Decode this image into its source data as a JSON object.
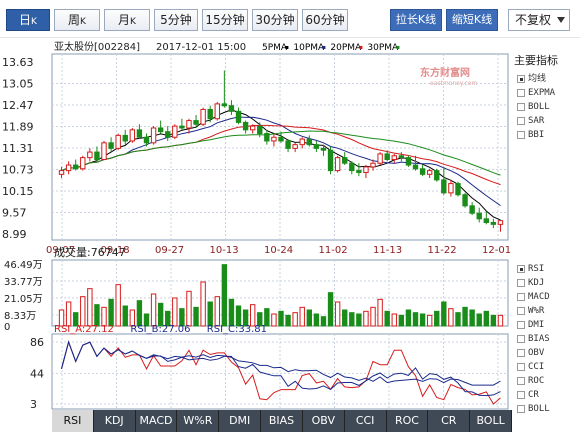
{
  "toolbar": {
    "periods": [
      {
        "label": "日",
        "sub": "K",
        "active": true
      },
      {
        "label": "周",
        "sub": "K",
        "active": false
      },
      {
        "label": "月",
        "sub": "K",
        "active": false
      },
      {
        "label": "5分钟",
        "sub": "",
        "active": false
      },
      {
        "label": "15分钟",
        "sub": "",
        "active": false
      },
      {
        "label": "30分钟",
        "sub": "",
        "active": false
      },
      {
        "label": "60分钟",
        "sub": "",
        "active": false
      }
    ],
    "lengthen_label": "拉长K线",
    "shorten_label": "缩短K线",
    "adjust_value": "不复权"
  },
  "chart_header": {
    "stock": "亚太股份[002284]",
    "datetime": "2017-12-01 15:00",
    "ma_labels": [
      {
        "label": "5PMA",
        "color": "#000000"
      },
      {
        "label": "10PMA",
        "color": "#1b2a8c"
      },
      {
        "label": "20PMA",
        "color": "#d61c1c"
      },
      {
        "label": "30PMA",
        "color": "#1a8c1a"
      }
    ]
  },
  "watermark": {
    "main": "东方财富网",
    "sub": "eastmoney.com"
  },
  "price_axis": [
    "13.63",
    "13.05",
    "12.47",
    "11.89",
    "11.31",
    "10.73",
    "10.15",
    "9.57",
    "8.99"
  ],
  "date_axis": [
    "09-07",
    "09-18",
    "09-27",
    "10-13",
    "10-24",
    "11-02",
    "11-13",
    "11-22",
    "12-01"
  ],
  "volume": {
    "title": "成交量:76747",
    "axis": [
      "46.49万",
      "33.77万",
      "21.05万",
      "8.33万",
      "0"
    ]
  },
  "rsi": {
    "labels": [
      {
        "label": "RSI_A:27.12",
        "color": "#d61c1c"
      },
      {
        "label": "RSI_B:27.06",
        "color": "#1b2a8c"
      },
      {
        "label": "RSI_C:33.81",
        "color": "#1b2a8c"
      }
    ],
    "axis": [
      "86",
      "44",
      "3"
    ]
  },
  "main_indicator": {
    "title": "主要指标",
    "items": [
      {
        "label": "均线",
        "selected": true
      },
      {
        "label": "EXPMA",
        "selected": false
      },
      {
        "label": "BOLL",
        "selected": false
      },
      {
        "label": "SAR",
        "selected": false
      },
      {
        "label": "BBI",
        "selected": false
      }
    ]
  },
  "sub_indicator": {
    "items": [
      {
        "label": "RSI",
        "selected": true
      },
      {
        "label": "KDJ",
        "selected": false
      },
      {
        "label": "MACD",
        "selected": false
      },
      {
        "label": "W%R",
        "selected": false
      },
      {
        "label": "DMI",
        "selected": false
      },
      {
        "label": "BIAS",
        "selected": false
      },
      {
        "label": "OBV",
        "selected": false
      },
      {
        "label": "CCI",
        "selected": false
      },
      {
        "label": "ROC",
        "selected": false
      },
      {
        "label": "CR",
        "selected": false
      },
      {
        "label": "BOLL",
        "selected": false
      }
    ]
  },
  "bottom_tabs": [
    "RSI",
    "KDJ",
    "MACD",
    "W%R",
    "DMI",
    "BIAS",
    "OBV",
    "CCI",
    "ROC",
    "CR",
    "BOLL"
  ],
  "bottom_tab_active": 0,
  "colors": {
    "up": "#d61c1c",
    "down": "#1a8c1a",
    "grid": "#c9d3e0",
    "axis_text": "#222222",
    "date_text": "#8b1a1a"
  },
  "chart_data": {
    "type": "candlestick",
    "price_range": [
      8.99,
      13.63
    ],
    "volume_max_wan": 46.49,
    "rsi_range": [
      3,
      86
    ],
    "ohlc": [
      [
        10.6,
        10.8,
        10.5,
        10.7
      ],
      [
        10.7,
        10.95,
        10.6,
        10.85
      ],
      [
        10.85,
        11.0,
        10.7,
        10.75
      ],
      [
        10.75,
        11.1,
        10.7,
        11.05
      ],
      [
        11.05,
        11.3,
        10.95,
        11.2
      ],
      [
        11.2,
        11.35,
        10.95,
        11.0
      ],
      [
        11.0,
        11.5,
        10.98,
        11.45
      ],
      [
        11.45,
        11.6,
        11.2,
        11.3
      ],
      [
        11.3,
        11.7,
        11.25,
        11.65
      ],
      [
        11.65,
        11.8,
        11.4,
        11.5
      ],
      [
        11.5,
        11.85,
        11.45,
        11.8
      ],
      [
        11.8,
        11.95,
        11.55,
        11.6
      ],
      [
        11.6,
        11.7,
        11.35,
        11.45
      ],
      [
        11.45,
        11.9,
        11.4,
        11.85
      ],
      [
        11.85,
        12.05,
        11.7,
        11.75
      ],
      [
        11.75,
        11.9,
        11.5,
        11.6
      ],
      [
        11.6,
        11.95,
        11.55,
        11.9
      ],
      [
        11.9,
        12.1,
        11.8,
        11.85
      ],
      [
        11.85,
        12.1,
        11.7,
        12.05
      ],
      [
        12.05,
        12.2,
        11.85,
        11.95
      ],
      [
        11.95,
        12.4,
        11.9,
        12.35
      ],
      [
        12.35,
        12.45,
        12.0,
        12.1
      ],
      [
        12.1,
        12.55,
        12.05,
        12.5
      ],
      [
        12.5,
        13.4,
        12.4,
        12.45
      ],
      [
        12.45,
        12.6,
        12.2,
        12.3
      ],
      [
        12.3,
        12.4,
        11.95,
        12.0
      ],
      [
        12.0,
        12.05,
        11.7,
        11.8
      ],
      [
        11.8,
        11.95,
        11.7,
        11.9
      ],
      [
        11.9,
        12.0,
        11.6,
        11.7
      ],
      [
        11.7,
        11.8,
        11.4,
        11.5
      ],
      [
        11.5,
        11.7,
        11.35,
        11.6
      ],
      [
        11.6,
        11.75,
        11.45,
        11.5
      ],
      [
        11.5,
        11.55,
        11.2,
        11.3
      ],
      [
        11.3,
        11.45,
        11.2,
        11.4
      ],
      [
        11.4,
        11.6,
        11.3,
        11.55
      ],
      [
        11.55,
        11.65,
        11.35,
        11.4
      ],
      [
        11.4,
        11.5,
        11.2,
        11.3
      ],
      [
        11.3,
        11.4,
        11.1,
        11.25
      ],
      [
        11.25,
        11.35,
        10.6,
        10.7
      ],
      [
        10.7,
        11.1,
        10.65,
        11.05
      ],
      [
        11.05,
        11.2,
        10.85,
        10.9
      ],
      [
        10.9,
        10.95,
        10.6,
        10.7
      ],
      [
        10.7,
        10.9,
        10.55,
        10.65
      ],
      [
        10.65,
        10.85,
        10.5,
        10.8
      ],
      [
        10.8,
        11.0,
        10.7,
        10.9
      ],
      [
        10.9,
        11.2,
        10.85,
        11.15
      ],
      [
        11.15,
        11.25,
        10.95,
        11.0
      ],
      [
        11.0,
        11.15,
        10.9,
        11.1
      ],
      [
        11.1,
        11.2,
        10.95,
        11.05
      ],
      [
        11.05,
        11.1,
        10.8,
        10.85
      ],
      [
        10.85,
        11.1,
        10.7,
        10.75
      ],
      [
        10.75,
        10.85,
        10.55,
        10.6
      ],
      [
        10.6,
        10.75,
        10.5,
        10.7
      ],
      [
        10.7,
        10.75,
        10.4,
        10.45
      ],
      [
        10.45,
        10.8,
        10.05,
        10.1
      ],
      [
        10.1,
        10.45,
        10.0,
        10.35
      ],
      [
        10.35,
        10.4,
        10.0,
        10.05
      ],
      [
        10.05,
        10.1,
        9.7,
        9.75
      ],
      [
        9.75,
        9.85,
        9.5,
        9.55
      ],
      [
        9.55,
        9.7,
        9.3,
        9.4
      ],
      [
        9.4,
        9.6,
        9.25,
        9.3
      ],
      [
        9.3,
        9.4,
        9.15,
        9.25
      ],
      [
        9.25,
        9.35,
        9.05,
        9.35
      ]
    ],
    "volume_wan": [
      12,
      18,
      10,
      22,
      28,
      16,
      14,
      20,
      31,
      15,
      12,
      19,
      9,
      24,
      17,
      11,
      21,
      13,
      26,
      14,
      33,
      18,
      22,
      46,
      20,
      15,
      12,
      16,
      10,
      13,
      9,
      11,
      8,
      10,
      14,
      12,
      9,
      7,
      25,
      18,
      12,
      10,
      9,
      11,
      14,
      20,
      11,
      9,
      8,
      12,
      10,
      9,
      8,
      11,
      18,
      13,
      10,
      14,
      12,
      9,
      11,
      8,
      8
    ],
    "ma5": [],
    "ma10": [],
    "ma20": [],
    "ma30": []
  }
}
